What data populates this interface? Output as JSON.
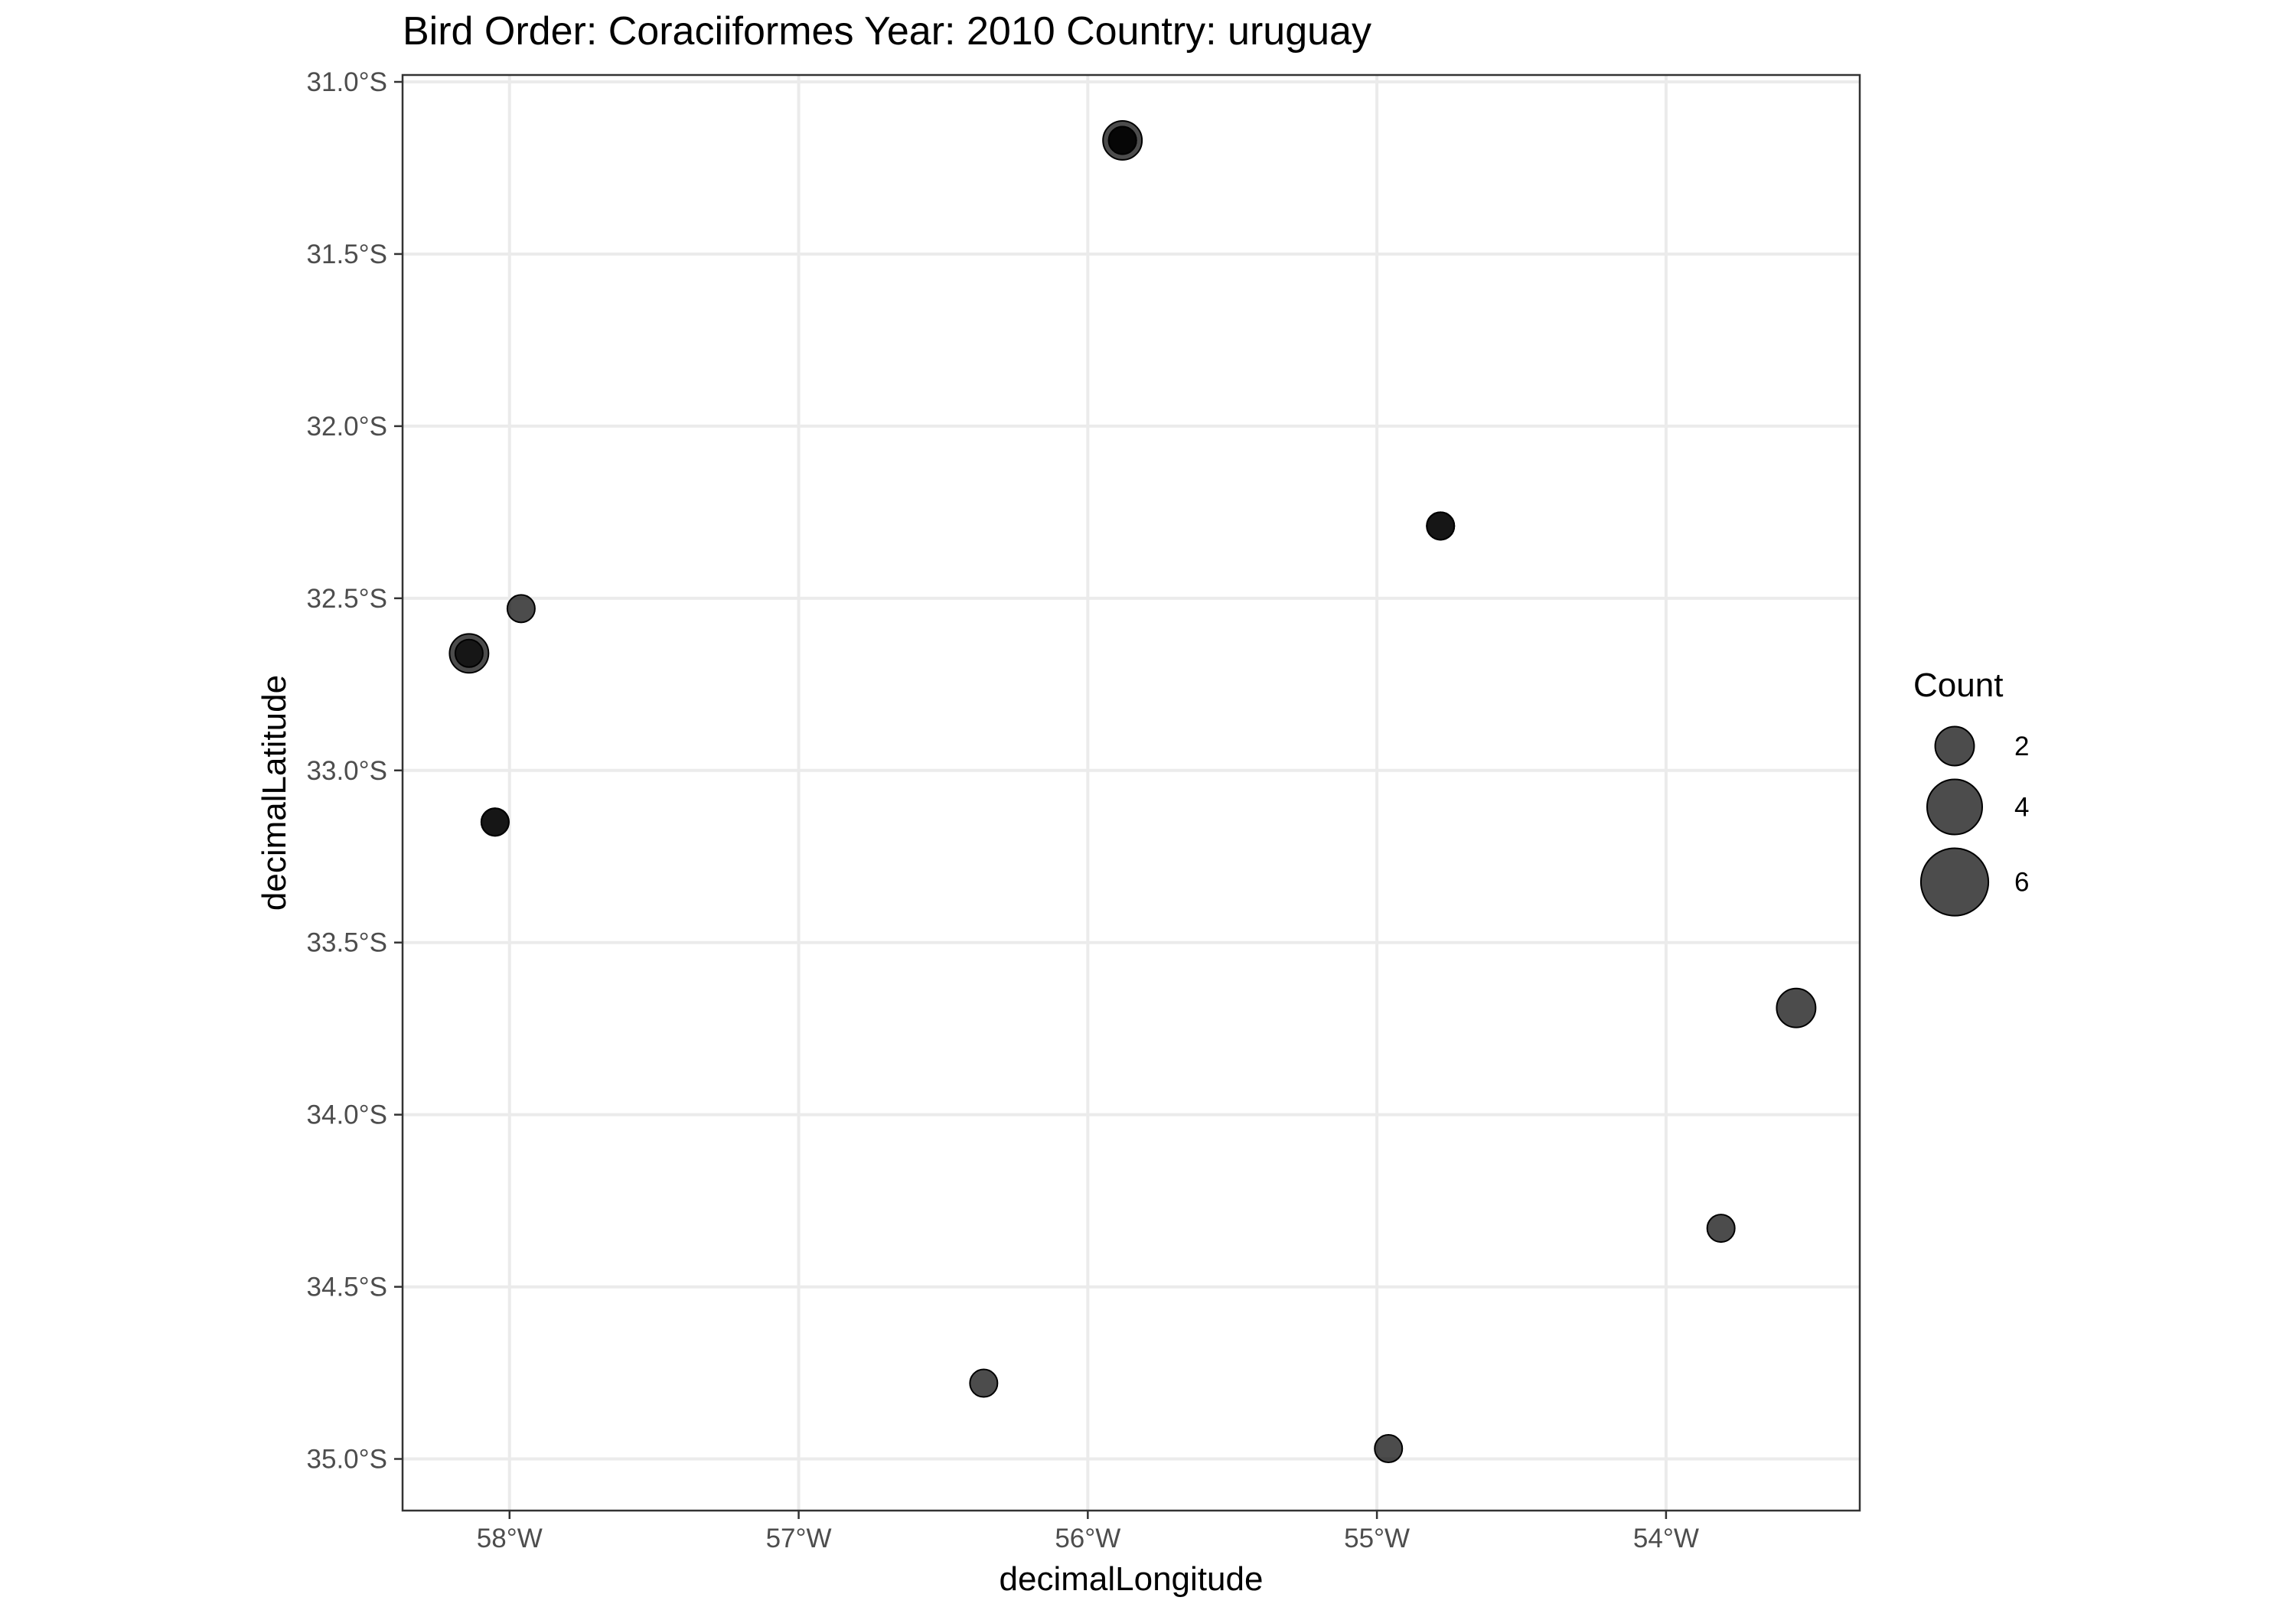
{
  "chart_data": {
    "type": "scatter",
    "title": "Bird Order: Coraciiformes Year: 2010 Country: uruguay",
    "xlabel": "decimalLongitude",
    "ylabel": "decimalLatitude",
    "xlim": [
      -58.37,
      -53.33
    ],
    "ylim": [
      -35.15,
      -30.98
    ],
    "x_ticks": [
      {
        "value": -58,
        "label": "58°W"
      },
      {
        "value": -57,
        "label": "57°W"
      },
      {
        "value": -56,
        "label": "56°W"
      },
      {
        "value": -55,
        "label": "55°W"
      },
      {
        "value": -54,
        "label": "54°W"
      }
    ],
    "y_ticks": [
      {
        "value": -31.0,
        "label": "31.0°S"
      },
      {
        "value": -31.5,
        "label": "31.5°S"
      },
      {
        "value": -32.0,
        "label": "32.0°S"
      },
      {
        "value": -32.5,
        "label": "32.5°S"
      },
      {
        "value": -33.0,
        "label": "33.0°S"
      },
      {
        "value": -33.5,
        "label": "33.5°S"
      },
      {
        "value": -34.0,
        "label": "34.0°S"
      },
      {
        "value": -34.5,
        "label": "34.5°S"
      },
      {
        "value": -35.0,
        "label": "35.0°S"
      }
    ],
    "grid": true,
    "point_color": "#000000",
    "point_opacity": 0.7,
    "size_legend": {
      "title": "Count",
      "position": "right",
      "entries": [
        {
          "value": 2,
          "label": "2"
        },
        {
          "value": 4,
          "label": "4"
        },
        {
          "value": 6,
          "label": "6"
        }
      ]
    },
    "points": [
      {
        "x": -55.88,
        "y": -31.17,
        "count": 2
      },
      {
        "x": -55.88,
        "y": -31.17,
        "count": 1
      },
      {
        "x": -55.88,
        "y": -31.17,
        "count": 1
      },
      {
        "x": -54.78,
        "y": -32.29,
        "count": 1
      },
      {
        "x": -54.78,
        "y": -32.29,
        "count": 1
      },
      {
        "x": -57.96,
        "y": -32.53,
        "count": 1
      },
      {
        "x": -58.14,
        "y": -32.66,
        "count": 2
      },
      {
        "x": -58.14,
        "y": -32.66,
        "count": 1
      },
      {
        "x": -58.05,
        "y": -33.15,
        "count": 1
      },
      {
        "x": -58.05,
        "y": -33.15,
        "count": 1
      },
      {
        "x": -53.55,
        "y": -33.69,
        "count": 2
      },
      {
        "x": -53.81,
        "y": -34.33,
        "count": 1
      },
      {
        "x": -56.36,
        "y": -34.78,
        "count": 1
      },
      {
        "x": -54.96,
        "y": -34.97,
        "count": 1
      }
    ]
  }
}
